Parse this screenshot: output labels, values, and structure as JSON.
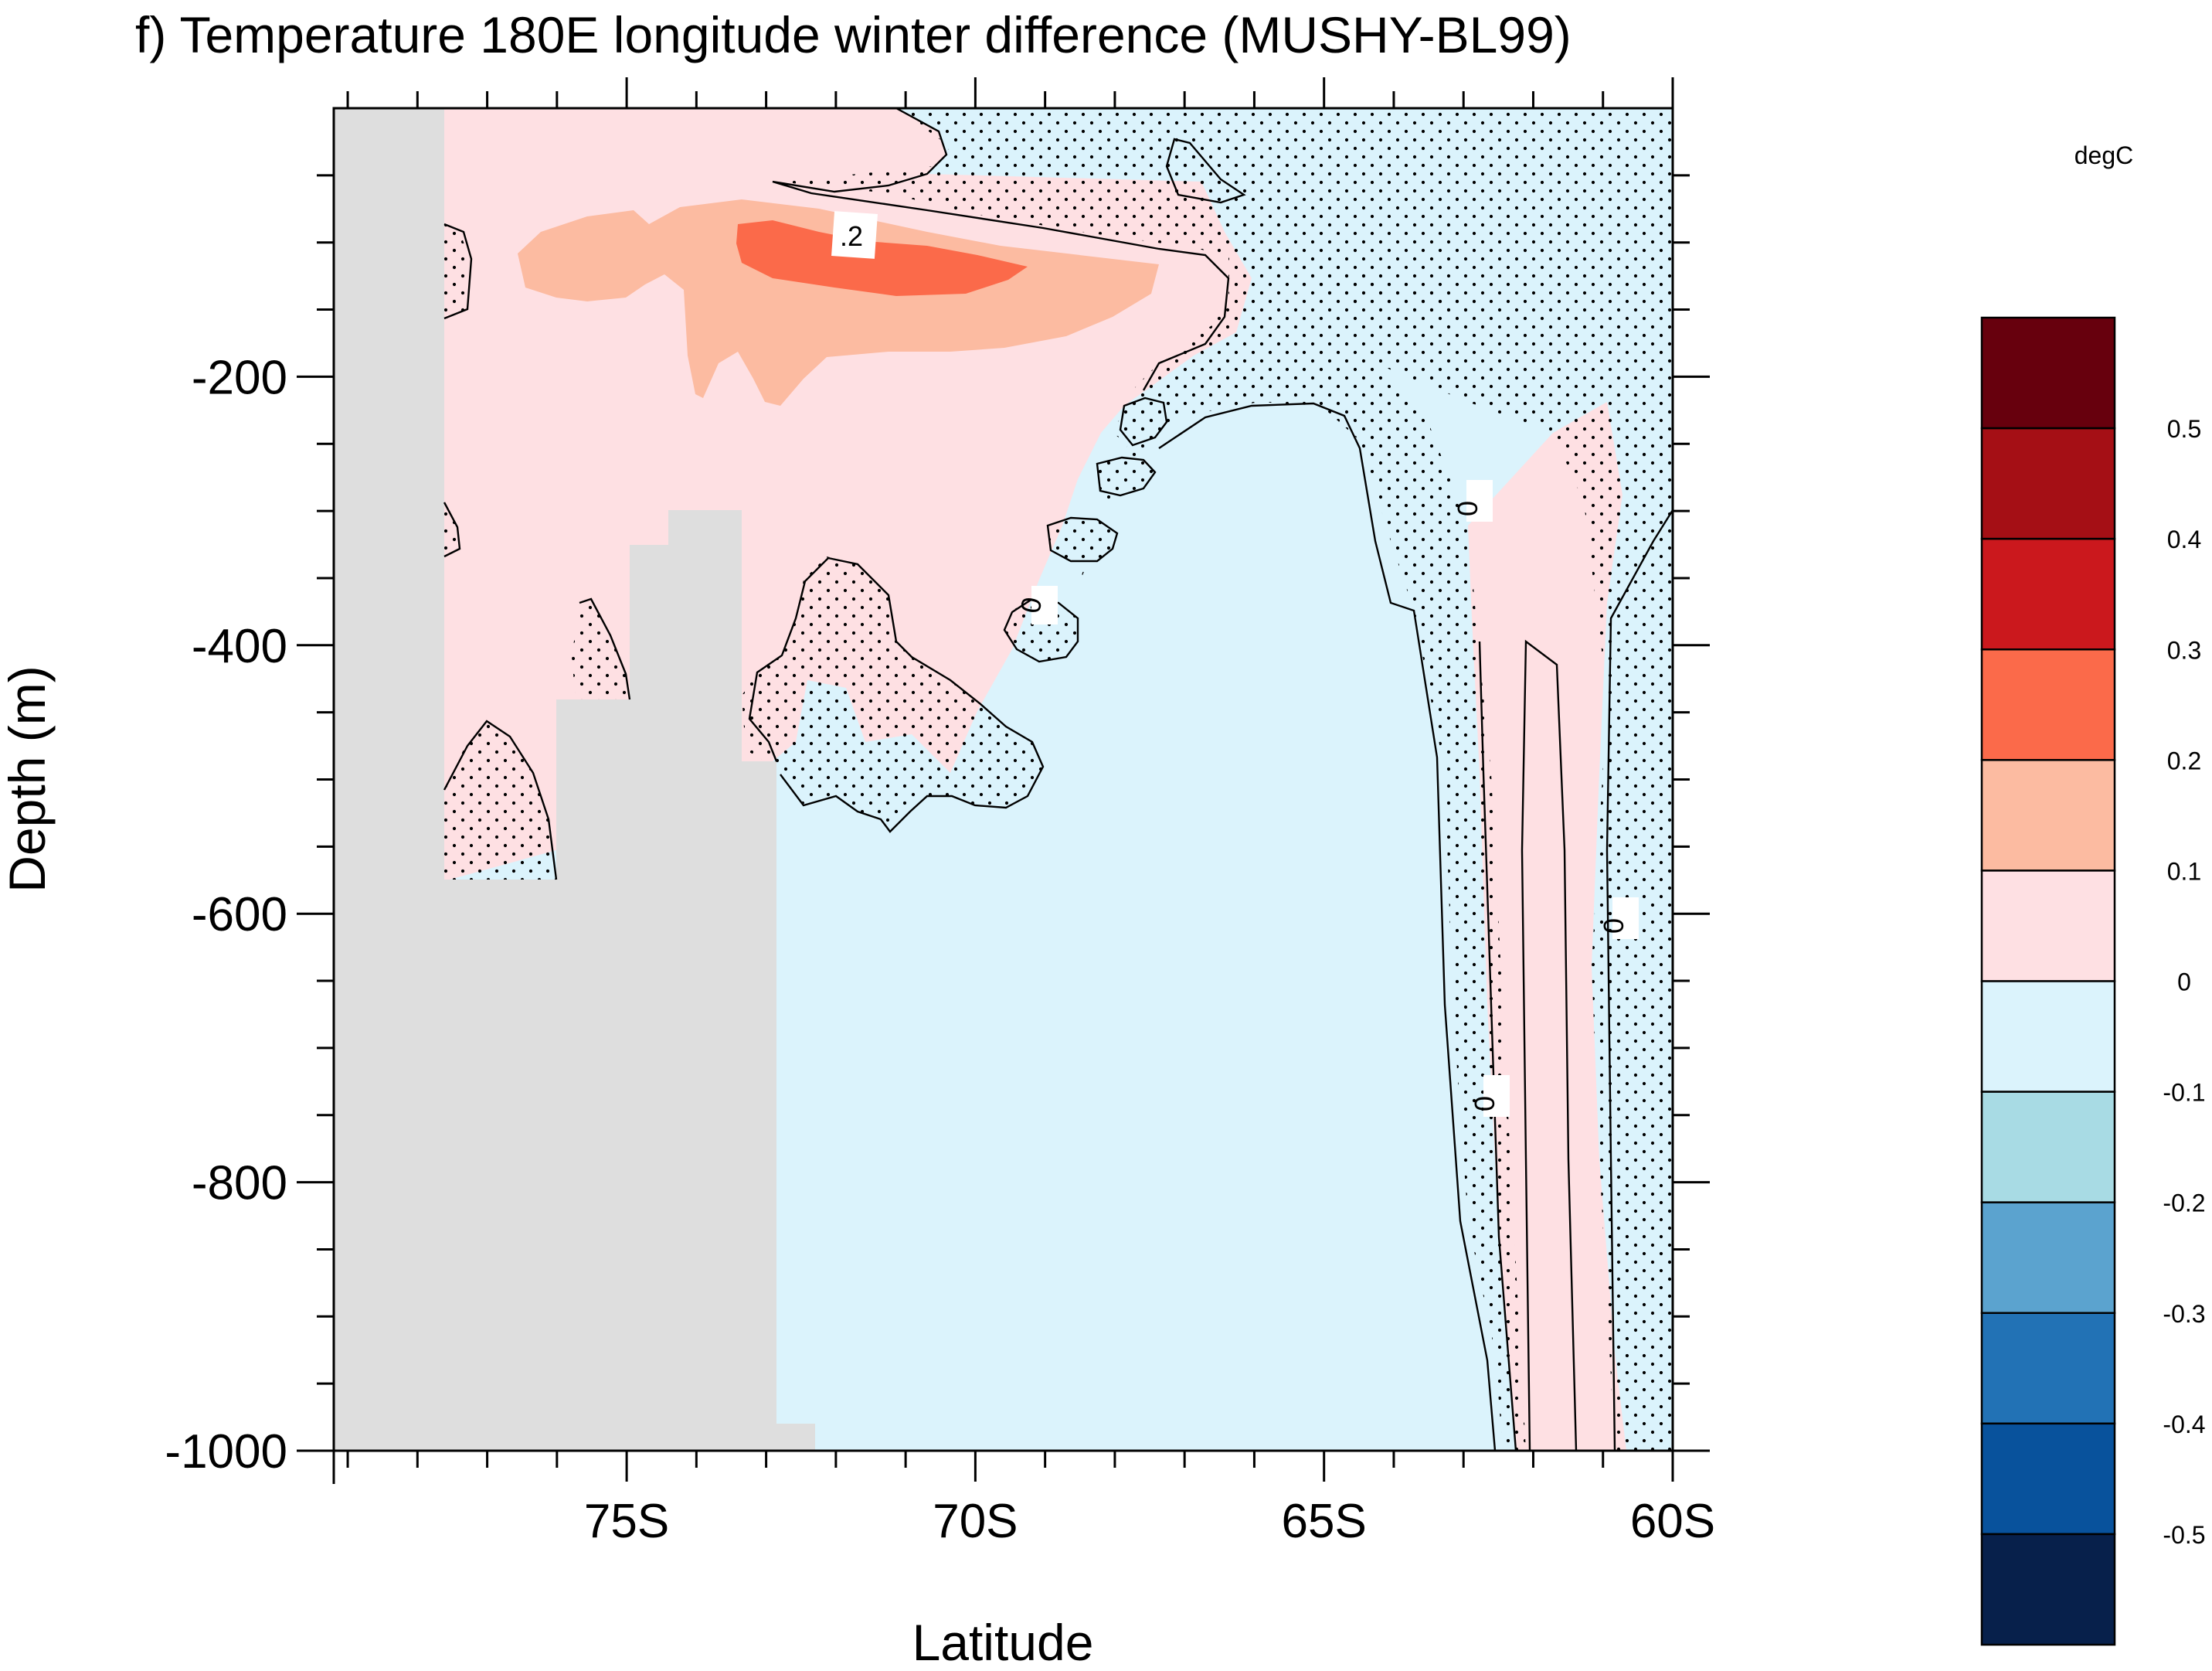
{
  "chart_data": {
    "type": "heatmap",
    "title": "f) Temperature 180E longitude winter difference (MUSHY-BL99)",
    "xlabel": "Latitude",
    "ylabel": "Depth (m)",
    "units_label": "degC",
    "x_axis": {
      "range": [
        -79.2,
        -60
      ],
      "major_ticks": [
        -75,
        -70,
        -65,
        -60
      ],
      "major_tick_labels": [
        "75S",
        "70S",
        "65S",
        "60S"
      ],
      "minor_step": 1
    },
    "y_axis": {
      "range": [
        -1000,
        0
      ],
      "major_ticks": [
        -200,
        -400,
        -600,
        -800,
        -1000
      ],
      "major_tick_labels": [
        "-200",
        "-400",
        "-600",
        "-800",
        "-1000"
      ],
      "minor_step": 50
    },
    "colorbar": {
      "labels": [
        "0.5",
        "0.4",
        "0.3",
        "0.2",
        "0.1",
        "0",
        "-0.1",
        "-0.2",
        "-0.3",
        "-0.4",
        "-0.5"
      ],
      "colors_top_to_bottom": [
        "#67000d",
        "#a50f15",
        "#cb181d",
        "#fb6a4a",
        "#fcbba1",
        "#fee0e3",
        "#dbf3fc",
        "#a8dbe4",
        "#5ba3cf",
        "#2272b5",
        "#08529c",
        "#07204b"
      ],
      "placement": "right"
    },
    "contour_labels": [
      ".2",
      "0",
      "0",
      "0",
      "0"
    ],
    "colors": {
      "land": "#dedede",
      "positive_0_to_0.1": "#fee0e3",
      "positive_0.1_to_0.2": "#fcbba1",
      "positive_0.2_to_0.3": "#fb6a4a",
      "negative_0_to_-0.1": "#dbf3fc"
    },
    "stippling": "dots mark significant regions",
    "grid": false
  }
}
